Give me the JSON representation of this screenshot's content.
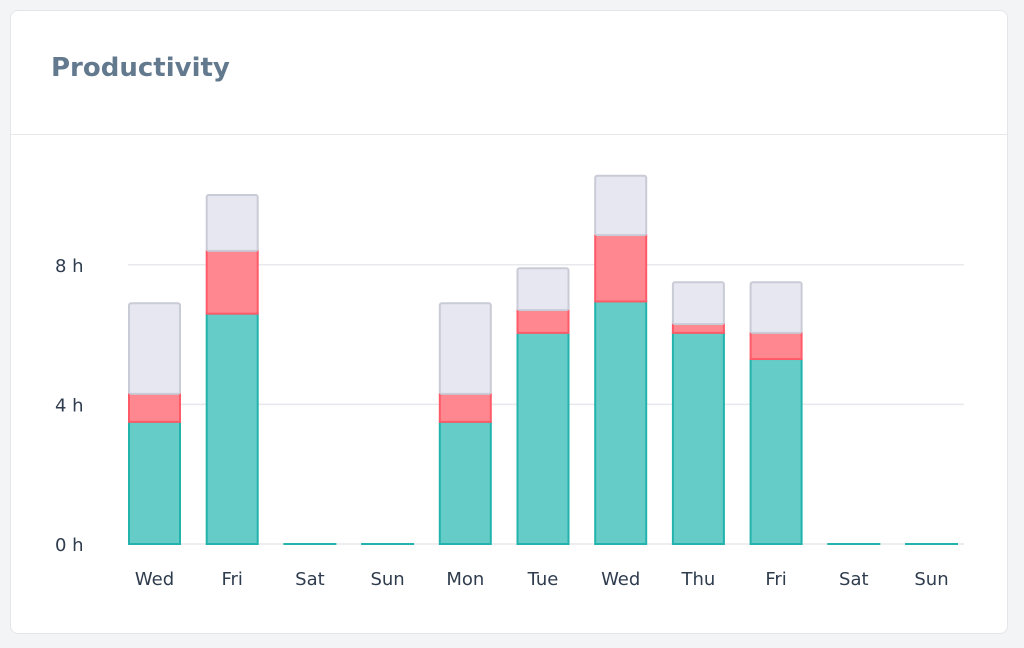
{
  "card": {
    "title": "Productivity"
  },
  "chart_data": {
    "type": "bar",
    "stacked": true,
    "categories": [
      "Wed",
      "Fri",
      "Sat",
      "Sun",
      "Mon",
      "Tue",
      "Wed",
      "Thu",
      "Fri",
      "Sat",
      "Sun"
    ],
    "series": [
      {
        "color": "#66ccc8",
        "stroke": "#22b3ac",
        "values": [
          3.5,
          6.6,
          0,
          0,
          3.5,
          6.05,
          6.95,
          6.05,
          5.3,
          0,
          0
        ]
      },
      {
        "color": "#ff8890",
        "stroke": "#ff5a68",
        "values": [
          0.8,
          1.8,
          0,
          0,
          0.8,
          0.65,
          1.9,
          0.25,
          0.75,
          0,
          0
        ]
      },
      {
        "color": "#e6e7f0",
        "stroke": "#c9cbd6",
        "values": [
          2.6,
          1.6,
          0,
          0,
          2.6,
          1.2,
          1.7,
          1.2,
          1.45,
          0,
          0
        ]
      }
    ],
    "yticks": [
      "0 h",
      "4 h",
      "8 h"
    ],
    "ytick_values": [
      0,
      4,
      8
    ],
    "ylim": [
      0,
      12
    ],
    "grid": true,
    "legend": "none"
  }
}
